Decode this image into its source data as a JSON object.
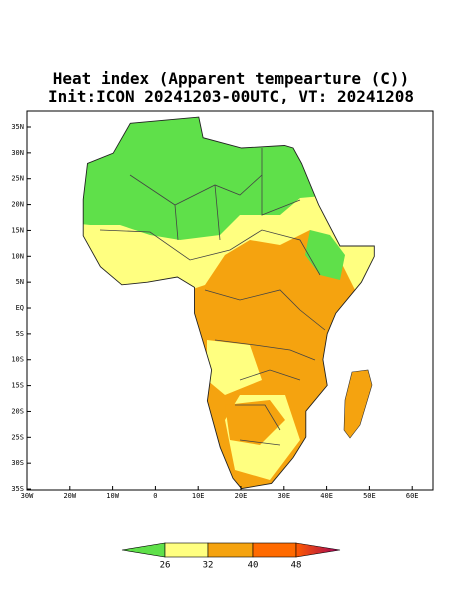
{
  "header": {
    "title": "Heat index (Apparent tempearture (C))",
    "subtitle": "Init:ICON 20241203-00UTC, VT: 20241208"
  },
  "map": {
    "lat_labels": [
      "35N",
      "30N",
      "25N",
      "20N",
      "15N",
      "10N",
      "5N",
      "EQ",
      "5S",
      "10S",
      "15S",
      "20S",
      "25S",
      "30S",
      "35S"
    ],
    "lon_labels": [
      "30W",
      "20W",
      "10W",
      "0",
      "10E",
      "20E",
      "30E",
      "40E",
      "50E",
      "60E"
    ]
  },
  "colorbar": {
    "labels": [
      26,
      32,
      40,
      48
    ]
  }
}
